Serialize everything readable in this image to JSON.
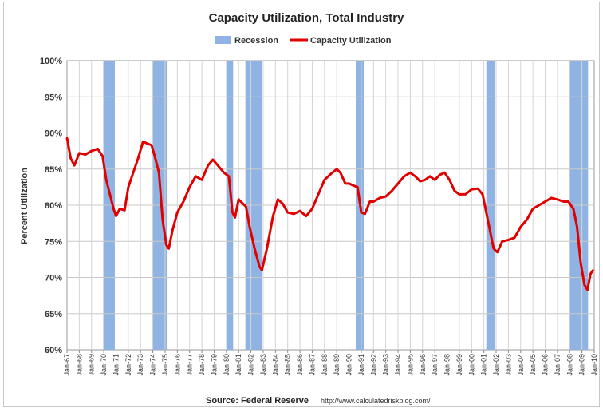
{
  "chart_data": {
    "type": "line",
    "title": "Capacity Utilization, Total Industry",
    "ylabel": "Percent Utilization",
    "ylim": [
      60,
      100
    ],
    "yticks": [
      "60%",
      "65%",
      "70%",
      "75%",
      "80%",
      "85%",
      "90%",
      "95%",
      "100%"
    ],
    "xlim": [
      1967.0,
      2010.0
    ],
    "xtick_labels": [
      "Jan-67",
      "Jan-68",
      "Jan-69",
      "Jan-70",
      "Jan-71",
      "Jan-72",
      "Jan-73",
      "Jan-74",
      "Jan-75",
      "Jan-76",
      "Jan-77",
      "Jan-78",
      "Jan-79",
      "Jan-80",
      "Jan-81",
      "Jan-82",
      "Jan-83",
      "Jan-84",
      "Jan-85",
      "Jan-86",
      "Jan-87",
      "Jan-88",
      "Jan-89",
      "Jan-90",
      "Jan-91",
      "Jan-92",
      "Jan-93",
      "Jan-94",
      "Jan-95",
      "Jan-96",
      "Jan-97",
      "Jan-98",
      "Jan-99",
      "Jan-00",
      "Jan-01",
      "Jan-02",
      "Jan-03",
      "Jan-04",
      "Jan-05",
      "Jan-06",
      "Jan-07",
      "Jan-08",
      "Jan-09",
      "Jan-10"
    ],
    "grid": true,
    "legend": {
      "placement": "top",
      "entries": [
        {
          "label": "Recession",
          "color": "#8fb4e3",
          "kind": "band"
        },
        {
          "label": "Capacity Utilization",
          "color": "#e00000",
          "kind": "line"
        }
      ]
    },
    "recessions": [
      [
        1969.95,
        1970.9
      ],
      [
        1973.9,
        1975.2
      ],
      [
        1980.0,
        1980.55
      ],
      [
        1981.55,
        1982.9
      ],
      [
        1990.55,
        1991.2
      ],
      [
        2001.2,
        2001.9
      ],
      [
        2007.95,
        2009.5
      ]
    ],
    "series": [
      {
        "name": "Capacity Utilization",
        "color": "#e00000",
        "x": [
          1967.0,
          1967.3,
          1967.6,
          1968.0,
          1968.5,
          1969.0,
          1969.5,
          1969.9,
          1970.2,
          1970.5,
          1970.8,
          1971.0,
          1971.3,
          1971.7,
          1972.0,
          1972.4,
          1972.8,
          1973.2,
          1973.6,
          1973.9,
          1974.2,
          1974.5,
          1974.8,
          1975.1,
          1975.3,
          1975.6,
          1976.0,
          1976.5,
          1977.0,
          1977.5,
          1978.0,
          1978.5,
          1978.9,
          1979.3,
          1979.8,
          1980.2,
          1980.5,
          1980.7,
          1981.0,
          1981.3,
          1981.6,
          1981.9,
          1982.3,
          1982.7,
          1982.9,
          1983.3,
          1983.8,
          1984.2,
          1984.6,
          1985.0,
          1985.5,
          1986.0,
          1986.5,
          1987.0,
          1987.5,
          1988.0,
          1988.5,
          1989.0,
          1989.3,
          1989.7,
          1990.0,
          1990.4,
          1990.7,
          1991.0,
          1991.3,
          1991.7,
          1992.0,
          1992.5,
          1993.0,
          1993.5,
          1994.0,
          1994.5,
          1995.0,
          1995.4,
          1995.8,
          1996.2,
          1996.6,
          1997.0,
          1997.4,
          1997.8,
          1998.2,
          1998.6,
          1999.0,
          1999.5,
          2000.0,
          2000.5,
          2000.9,
          2001.2,
          2001.5,
          2001.8,
          2002.1,
          2002.5,
          2003.0,
          2003.5,
          2004.0,
          2004.5,
          2005.0,
          2005.5,
          2006.0,
          2006.5,
          2007.0,
          2007.5,
          2007.9,
          2008.3,
          2008.6,
          2008.9,
          2009.2,
          2009.45,
          2009.7,
          2009.9
        ],
        "y": [
          89.3,
          86.5,
          85.5,
          87.2,
          87.0,
          87.5,
          87.8,
          86.8,
          83.5,
          81.5,
          79.5,
          78.5,
          79.5,
          79.3,
          82.5,
          84.5,
          86.5,
          88.8,
          88.5,
          88.3,
          86.5,
          84.5,
          78.0,
          74.5,
          74.0,
          76.5,
          79.0,
          80.5,
          82.5,
          84.0,
          83.5,
          85.5,
          86.3,
          85.5,
          84.5,
          84.0,
          79.0,
          78.3,
          80.8,
          80.3,
          79.8,
          77.0,
          74.0,
          71.5,
          71.0,
          74.0,
          78.5,
          80.8,
          80.2,
          79.0,
          78.8,
          79.2,
          78.5,
          79.5,
          81.5,
          83.5,
          84.3,
          85.0,
          84.5,
          83.0,
          83.0,
          82.7,
          82.5,
          79.0,
          78.8,
          80.5,
          80.5,
          81.0,
          81.2,
          82.0,
          83.0,
          84.0,
          84.5,
          84.0,
          83.3,
          83.5,
          84.0,
          83.5,
          84.2,
          84.5,
          83.5,
          82.0,
          81.5,
          81.5,
          82.2,
          82.3,
          81.5,
          79.0,
          76.5,
          74.0,
          73.5,
          75.0,
          75.2,
          75.5,
          77.0,
          78.0,
          79.5,
          80.0,
          80.5,
          81.0,
          80.8,
          80.5,
          80.5,
          79.5,
          77.0,
          72.0,
          69.0,
          68.3,
          70.5,
          71.0
        ]
      }
    ]
  },
  "source": {
    "label": "Source: Federal Reserve",
    "url": "http://www.calculatedriskblog.com/"
  }
}
